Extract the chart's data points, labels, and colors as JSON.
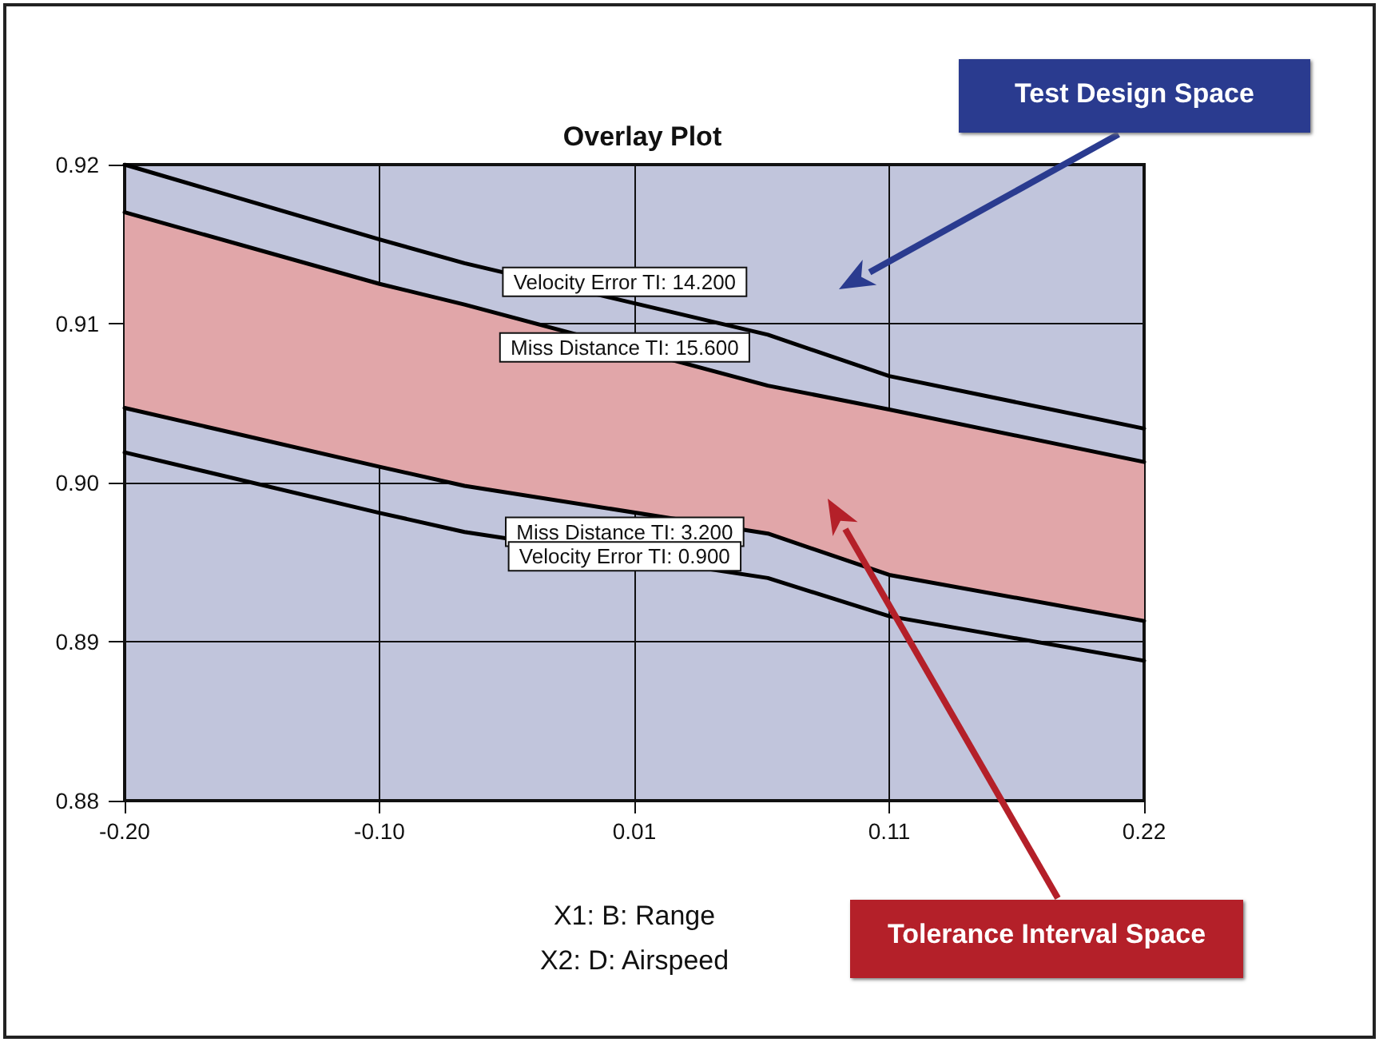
{
  "chart_data": {
    "type": "line",
    "title": "Overlay Plot",
    "xlabel": "X1: B: Range\nX2: D: Airspeed",
    "xlim": [
      -0.2,
      0.22
    ],
    "xticks": [
      {
        "value": -0.2,
        "label": "-0.20"
      },
      {
        "value": -0.095,
        "label": "-0.10"
      },
      {
        "value": 0.01,
        "label": "0.01"
      },
      {
        "value": 0.115,
        "label": "0.11"
      },
      {
        "value": 0.22,
        "label": "0.22"
      }
    ],
    "ylim": [
      0.88,
      0.92
    ],
    "yticks": [
      {
        "value": 0.88,
        "label": "0.88"
      },
      {
        "value": 0.89,
        "label": "0.89"
      },
      {
        "value": 0.9,
        "label": "0.90"
      },
      {
        "value": 0.91,
        "label": "0.91"
      },
      {
        "value": 0.92,
        "label": "0.92"
      }
    ],
    "grid": true,
    "legend": false,
    "marker": "none",
    "line_style": "solid",
    "series": [
      {
        "type": "area",
        "color": "#e1a6a9",
        "x": [
          -0.2,
          -0.095,
          -0.06,
          0.065,
          0.115,
          0.22
        ],
        "values": [
          null,
          null,
          null,
          null,
          null,
          null
        ],
        "upper": [
          0.917,
          0.9125,
          0.9112,
          0.9061,
          0.9046,
          0.9013
        ],
        "lower": [
          0.9047,
          0.901,
          0.8998,
          0.8968,
          0.8942,
          0.8913
        ]
      },
      {
        "name": "Velocity Error TI: 14.200",
        "color": "#000000",
        "x": [
          -0.2,
          -0.095,
          -0.06,
          0.065,
          0.115,
          0.22
        ],
        "values": [
          0.92,
          0.9153,
          0.9138,
          0.9093,
          0.9067,
          0.9034
        ]
      },
      {
        "name": "Miss Distance TI: 15.600",
        "color": "#000000",
        "x": [
          -0.2,
          -0.095,
          -0.06,
          0.065,
          0.115,
          0.22
        ],
        "values": [
          0.917,
          0.9125,
          0.9112,
          0.9061,
          0.9046,
          0.9013
        ]
      },
      {
        "name": "Miss Distance TI: 3.200",
        "color": "#000000",
        "x": [
          -0.2,
          -0.095,
          -0.06,
          0.065,
          0.115,
          0.22
        ],
        "values": [
          0.9047,
          0.901,
          0.8998,
          0.8968,
          0.8942,
          0.8913
        ]
      },
      {
        "name": "Velocity Error TI: 0.900",
        "color": "#000000",
        "x": [
          -0.2,
          -0.095,
          -0.06,
          0.065,
          0.115,
          0.22
        ],
        "values": [
          0.9019,
          0.8981,
          0.8969,
          0.894,
          0.8916,
          0.8888
        ]
      }
    ],
    "annotations": [
      "Test Design Space",
      "Tolerance Interval Space"
    ]
  }
}
